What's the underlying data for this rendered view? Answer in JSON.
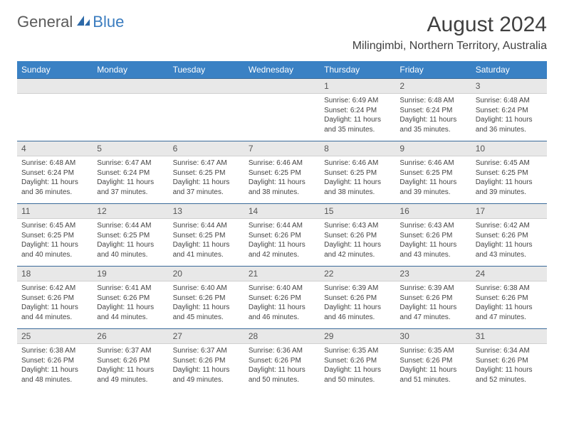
{
  "brand": {
    "part1": "General",
    "part2": "Blue"
  },
  "title": "August 2024",
  "location": "Milingimbi, Northern Territory, Australia",
  "colors": {
    "header_bg": "#3a81c4",
    "header_text": "#ffffff",
    "daynum_bg": "#e8e8e8",
    "row_border": "#3a6a9a",
    "brand_gray": "#5a5a5a",
    "brand_blue": "#3a7cbf"
  },
  "weekdays": [
    "Sunday",
    "Monday",
    "Tuesday",
    "Wednesday",
    "Thursday",
    "Friday",
    "Saturday"
  ],
  "weeks": [
    [
      {
        "n": "",
        "sr": "",
        "ss": "",
        "dl": ""
      },
      {
        "n": "",
        "sr": "",
        "ss": "",
        "dl": ""
      },
      {
        "n": "",
        "sr": "",
        "ss": "",
        "dl": ""
      },
      {
        "n": "",
        "sr": "",
        "ss": "",
        "dl": ""
      },
      {
        "n": "1",
        "sr": "Sunrise: 6:49 AM",
        "ss": "Sunset: 6:24 PM",
        "dl": "Daylight: 11 hours and 35 minutes."
      },
      {
        "n": "2",
        "sr": "Sunrise: 6:48 AM",
        "ss": "Sunset: 6:24 PM",
        "dl": "Daylight: 11 hours and 35 minutes."
      },
      {
        "n": "3",
        "sr": "Sunrise: 6:48 AM",
        "ss": "Sunset: 6:24 PM",
        "dl": "Daylight: 11 hours and 36 minutes."
      }
    ],
    [
      {
        "n": "4",
        "sr": "Sunrise: 6:48 AM",
        "ss": "Sunset: 6:24 PM",
        "dl": "Daylight: 11 hours and 36 minutes."
      },
      {
        "n": "5",
        "sr": "Sunrise: 6:47 AM",
        "ss": "Sunset: 6:24 PM",
        "dl": "Daylight: 11 hours and 37 minutes."
      },
      {
        "n": "6",
        "sr": "Sunrise: 6:47 AM",
        "ss": "Sunset: 6:25 PM",
        "dl": "Daylight: 11 hours and 37 minutes."
      },
      {
        "n": "7",
        "sr": "Sunrise: 6:46 AM",
        "ss": "Sunset: 6:25 PM",
        "dl": "Daylight: 11 hours and 38 minutes."
      },
      {
        "n": "8",
        "sr": "Sunrise: 6:46 AM",
        "ss": "Sunset: 6:25 PM",
        "dl": "Daylight: 11 hours and 38 minutes."
      },
      {
        "n": "9",
        "sr": "Sunrise: 6:46 AM",
        "ss": "Sunset: 6:25 PM",
        "dl": "Daylight: 11 hours and 39 minutes."
      },
      {
        "n": "10",
        "sr": "Sunrise: 6:45 AM",
        "ss": "Sunset: 6:25 PM",
        "dl": "Daylight: 11 hours and 39 minutes."
      }
    ],
    [
      {
        "n": "11",
        "sr": "Sunrise: 6:45 AM",
        "ss": "Sunset: 6:25 PM",
        "dl": "Daylight: 11 hours and 40 minutes."
      },
      {
        "n": "12",
        "sr": "Sunrise: 6:44 AM",
        "ss": "Sunset: 6:25 PM",
        "dl": "Daylight: 11 hours and 40 minutes."
      },
      {
        "n": "13",
        "sr": "Sunrise: 6:44 AM",
        "ss": "Sunset: 6:25 PM",
        "dl": "Daylight: 11 hours and 41 minutes."
      },
      {
        "n": "14",
        "sr": "Sunrise: 6:44 AM",
        "ss": "Sunset: 6:26 PM",
        "dl": "Daylight: 11 hours and 42 minutes."
      },
      {
        "n": "15",
        "sr": "Sunrise: 6:43 AM",
        "ss": "Sunset: 6:26 PM",
        "dl": "Daylight: 11 hours and 42 minutes."
      },
      {
        "n": "16",
        "sr": "Sunrise: 6:43 AM",
        "ss": "Sunset: 6:26 PM",
        "dl": "Daylight: 11 hours and 43 minutes."
      },
      {
        "n": "17",
        "sr": "Sunrise: 6:42 AM",
        "ss": "Sunset: 6:26 PM",
        "dl": "Daylight: 11 hours and 43 minutes."
      }
    ],
    [
      {
        "n": "18",
        "sr": "Sunrise: 6:42 AM",
        "ss": "Sunset: 6:26 PM",
        "dl": "Daylight: 11 hours and 44 minutes."
      },
      {
        "n": "19",
        "sr": "Sunrise: 6:41 AM",
        "ss": "Sunset: 6:26 PM",
        "dl": "Daylight: 11 hours and 44 minutes."
      },
      {
        "n": "20",
        "sr": "Sunrise: 6:40 AM",
        "ss": "Sunset: 6:26 PM",
        "dl": "Daylight: 11 hours and 45 minutes."
      },
      {
        "n": "21",
        "sr": "Sunrise: 6:40 AM",
        "ss": "Sunset: 6:26 PM",
        "dl": "Daylight: 11 hours and 46 minutes."
      },
      {
        "n": "22",
        "sr": "Sunrise: 6:39 AM",
        "ss": "Sunset: 6:26 PM",
        "dl": "Daylight: 11 hours and 46 minutes."
      },
      {
        "n": "23",
        "sr": "Sunrise: 6:39 AM",
        "ss": "Sunset: 6:26 PM",
        "dl": "Daylight: 11 hours and 47 minutes."
      },
      {
        "n": "24",
        "sr": "Sunrise: 6:38 AM",
        "ss": "Sunset: 6:26 PM",
        "dl": "Daylight: 11 hours and 47 minutes."
      }
    ],
    [
      {
        "n": "25",
        "sr": "Sunrise: 6:38 AM",
        "ss": "Sunset: 6:26 PM",
        "dl": "Daylight: 11 hours and 48 minutes."
      },
      {
        "n": "26",
        "sr": "Sunrise: 6:37 AM",
        "ss": "Sunset: 6:26 PM",
        "dl": "Daylight: 11 hours and 49 minutes."
      },
      {
        "n": "27",
        "sr": "Sunrise: 6:37 AM",
        "ss": "Sunset: 6:26 PM",
        "dl": "Daylight: 11 hours and 49 minutes."
      },
      {
        "n": "28",
        "sr": "Sunrise: 6:36 AM",
        "ss": "Sunset: 6:26 PM",
        "dl": "Daylight: 11 hours and 50 minutes."
      },
      {
        "n": "29",
        "sr": "Sunrise: 6:35 AM",
        "ss": "Sunset: 6:26 PM",
        "dl": "Daylight: 11 hours and 50 minutes."
      },
      {
        "n": "30",
        "sr": "Sunrise: 6:35 AM",
        "ss": "Sunset: 6:26 PM",
        "dl": "Daylight: 11 hours and 51 minutes."
      },
      {
        "n": "31",
        "sr": "Sunrise: 6:34 AM",
        "ss": "Sunset: 6:26 PM",
        "dl": "Daylight: 11 hours and 52 minutes."
      }
    ]
  ]
}
